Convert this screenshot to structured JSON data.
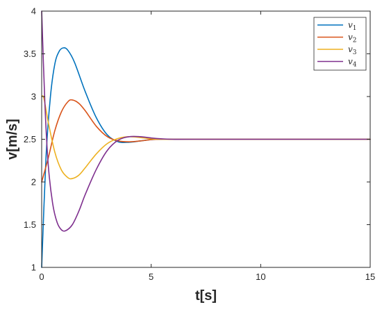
{
  "chart_data": {
    "type": "line",
    "title": "",
    "xlabel": "t[s]",
    "ylabel": "v[m/s]",
    "xlim": [
      0,
      15
    ],
    "ylim": [
      1,
      4
    ],
    "xticks": [
      "0",
      "5",
      "10",
      "15"
    ],
    "yticks": [
      "1",
      "1.5",
      "2",
      "2.5",
      "3",
      "3.5",
      "4"
    ],
    "grid": false,
    "legend": "top-right",
    "series": [
      {
        "name": "v",
        "subscript": "1",
        "color": "#0072BD",
        "x": [
          0,
          0.2,
          0.4,
          0.6,
          0.8,
          1.0,
          1.2,
          1.5,
          2.0,
          2.5,
          3.0,
          3.5,
          4.0,
          4.5,
          5.0,
          5.5,
          6.0,
          7.0,
          15
        ],
        "y": [
          1.0,
          2.3,
          3.0,
          3.38,
          3.53,
          3.57,
          3.54,
          3.4,
          3.05,
          2.75,
          2.55,
          2.47,
          2.465,
          2.48,
          2.495,
          2.5,
          2.5,
          2.5,
          2.5
        ]
      },
      {
        "name": "v",
        "subscript": "2",
        "color": "#D95319",
        "x": [
          0,
          0.3,
          0.6,
          0.9,
          1.2,
          1.4,
          1.7,
          2.0,
          2.5,
          3.0,
          3.5,
          4.0,
          4.5,
          5.0,
          5.5,
          6.0,
          7.0,
          15
        ],
        "y": [
          2.0,
          2.28,
          2.6,
          2.82,
          2.94,
          2.96,
          2.92,
          2.83,
          2.65,
          2.53,
          2.48,
          2.47,
          2.48,
          2.495,
          2.5,
          2.5,
          2.5,
          2.5
        ]
      },
      {
        "name": "v",
        "subscript": "3",
        "color": "#EDB120",
        "x": [
          0,
          0.1,
          0.3,
          0.6,
          0.9,
          1.2,
          1.4,
          1.7,
          2.0,
          2.5,
          3.0,
          3.5,
          4.0,
          4.5,
          5.0,
          5.5,
          6.0,
          7.0,
          15
        ],
        "y": [
          3.0,
          2.98,
          2.7,
          2.35,
          2.14,
          2.05,
          2.04,
          2.08,
          2.17,
          2.33,
          2.45,
          2.51,
          2.53,
          2.52,
          2.505,
          2.5,
          2.5,
          2.5,
          2.5
        ]
      },
      {
        "name": "v",
        "subscript": "4",
        "color": "#7E2F8E",
        "x": [
          0,
          0.15,
          0.3,
          0.5,
          0.7,
          0.9,
          1.1,
          1.4,
          1.7,
          2.0,
          2.5,
          3.0,
          3.5,
          4.0,
          4.5,
          5.0,
          5.5,
          6.0,
          7.0,
          15
        ],
        "y": [
          4.0,
          2.9,
          2.2,
          1.75,
          1.53,
          1.44,
          1.43,
          1.5,
          1.66,
          1.86,
          2.15,
          2.37,
          2.49,
          2.53,
          2.53,
          2.515,
          2.505,
          2.5,
          2.5,
          2.5
        ]
      }
    ]
  }
}
